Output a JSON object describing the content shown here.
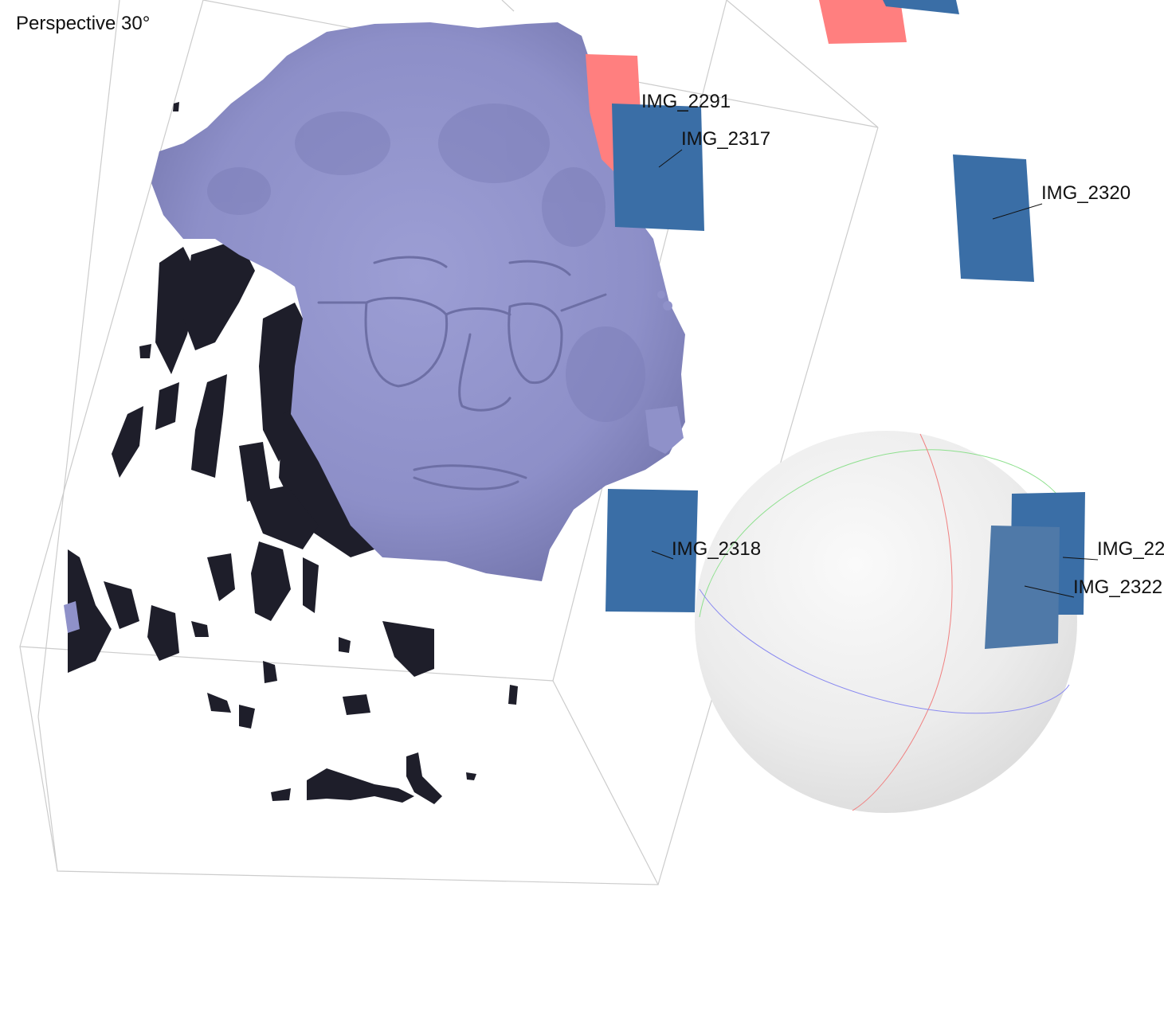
{
  "viewport": {
    "projection_label": "Perspective 30°"
  },
  "colors": {
    "mesh": "#8f91c9",
    "mesh_shadow": "#1e1e2a",
    "camera_blue": "#3a6ea6",
    "camera_red": "#ff7f7f",
    "bounding_box": "#cccccc"
  },
  "icons": {
    "gizmo": "trackball-sphere-icon",
    "camera": "camera-frustum-icon"
  },
  "cameras": [
    {
      "id": "cam-2291",
      "label": "IMG_2291",
      "color": "red"
    },
    {
      "id": "cam-2317",
      "label": "IMG_2317",
      "color": "blue"
    },
    {
      "id": "cam-2320",
      "label": "IMG_2320",
      "color": "blue"
    },
    {
      "id": "cam-2318",
      "label": "IMG_2318",
      "color": "blue"
    },
    {
      "id": "cam-22a",
      "label": "IMG_22",
      "color": "blue"
    },
    {
      "id": "cam-2322",
      "label": "IMG_2322",
      "color": "blue"
    }
  ]
}
